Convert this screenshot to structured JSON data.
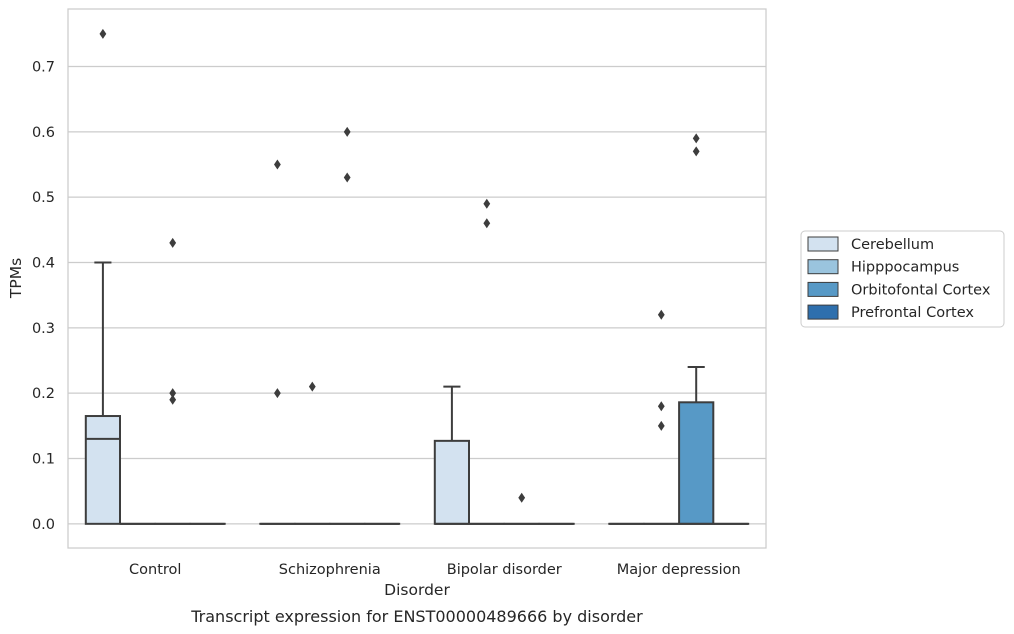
{
  "caption": "Transcript expression for ENST00000489666 by disorder",
  "chart_data": {
    "type": "box",
    "xlabel": "Disorder",
    "ylabel": "TPMs",
    "ylim": [
      -0.037,
      0.788
    ],
    "yticks": [
      "0.0",
      "0.1",
      "0.2",
      "0.3",
      "0.4",
      "0.5",
      "0.6",
      "0.7"
    ],
    "ytick_values": [
      0,
      0.1,
      0.2,
      0.3,
      0.4,
      0.5,
      0.6,
      0.7
    ],
    "grid": "horizontal",
    "legend_position": "right",
    "categories": [
      "Control",
      "Schizophrenia",
      "Bipolar disorder",
      "Major depression"
    ],
    "series": [
      {
        "name": "Cerebellum",
        "color": "#d3e2f0",
        "boxes": [
          {
            "category": "Control",
            "q1": 0,
            "median": 0.13,
            "q3": 0.165,
            "whisker_low": 0,
            "whisker_high": 0.4,
            "outliers": [
              0.75
            ]
          },
          {
            "category": "Schizophrenia",
            "q1": 0,
            "median": 0,
            "q3": 0,
            "whisker_low": 0,
            "whisker_high": 0,
            "outliers": [
              0.55,
              0.2
            ]
          },
          {
            "category": "Bipolar disorder",
            "q1": 0,
            "median": 0,
            "q3": 0.127,
            "whisker_low": 0,
            "whisker_high": 0.21,
            "outliers": []
          },
          {
            "category": "Major depression",
            "q1": 0,
            "median": 0,
            "q3": 0,
            "whisker_low": 0,
            "whisker_high": 0,
            "outliers": []
          }
        ]
      },
      {
        "name": "Hipppocampus",
        "color": "#9ac4de",
        "boxes": [
          {
            "category": "Control",
            "q1": 0,
            "median": 0,
            "q3": 0,
            "whisker_low": 0,
            "whisker_high": 0,
            "outliers": []
          },
          {
            "category": "Schizophrenia",
            "q1": 0,
            "median": 0,
            "q3": 0,
            "whisker_low": 0,
            "whisker_high": 0,
            "outliers": [
              0.21
            ]
          },
          {
            "category": "Bipolar disorder",
            "q1": 0,
            "median": 0,
            "q3": 0,
            "whisker_low": 0,
            "whisker_high": 0,
            "outliers": [
              0.49,
              0.46
            ]
          },
          {
            "category": "Major depression",
            "q1": 0,
            "median": 0,
            "q3": 0,
            "whisker_low": 0,
            "whisker_high": 0,
            "outliers": [
              0.32,
              0.18,
              0.15
            ]
          }
        ]
      },
      {
        "name": "Orbitofontal Cortex",
        "color": "#5799c6",
        "boxes": [
          {
            "category": "Control",
            "q1": 0,
            "median": 0,
            "q3": 0,
            "whisker_low": 0,
            "whisker_high": 0,
            "outliers": [
              0.43,
              0.2,
              0.19
            ]
          },
          {
            "category": "Schizophrenia",
            "q1": 0,
            "median": 0,
            "q3": 0,
            "whisker_low": 0,
            "whisker_high": 0,
            "outliers": [
              0.6,
              0.53
            ]
          },
          {
            "category": "Bipolar disorder",
            "q1": 0,
            "median": 0,
            "q3": 0,
            "whisker_low": 0,
            "whisker_high": 0,
            "outliers": [
              0.04
            ]
          },
          {
            "category": "Major depression",
            "q1": 0,
            "median": 0,
            "q3": 0.186,
            "whisker_low": 0,
            "whisker_high": 0.24,
            "outliers": [
              0.59,
              0.57
            ]
          }
        ]
      },
      {
        "name": "Prefrontal Cortex",
        "color": "#2e6fad",
        "boxes": [
          {
            "category": "Control",
            "q1": 0,
            "median": 0,
            "q3": 0,
            "whisker_low": 0,
            "whisker_high": 0,
            "outliers": []
          },
          {
            "category": "Schizophrenia",
            "q1": 0,
            "median": 0,
            "q3": 0,
            "whisker_low": 0,
            "whisker_high": 0,
            "outliers": []
          },
          {
            "category": "Bipolar disorder",
            "q1": 0,
            "median": 0,
            "q3": 0,
            "whisker_low": 0,
            "whisker_high": 0,
            "outliers": []
          },
          {
            "category": "Major depression",
            "q1": 0,
            "median": 0,
            "q3": 0,
            "whisker_low": 0,
            "whisker_high": 0,
            "outliers": []
          }
        ]
      }
    ]
  }
}
